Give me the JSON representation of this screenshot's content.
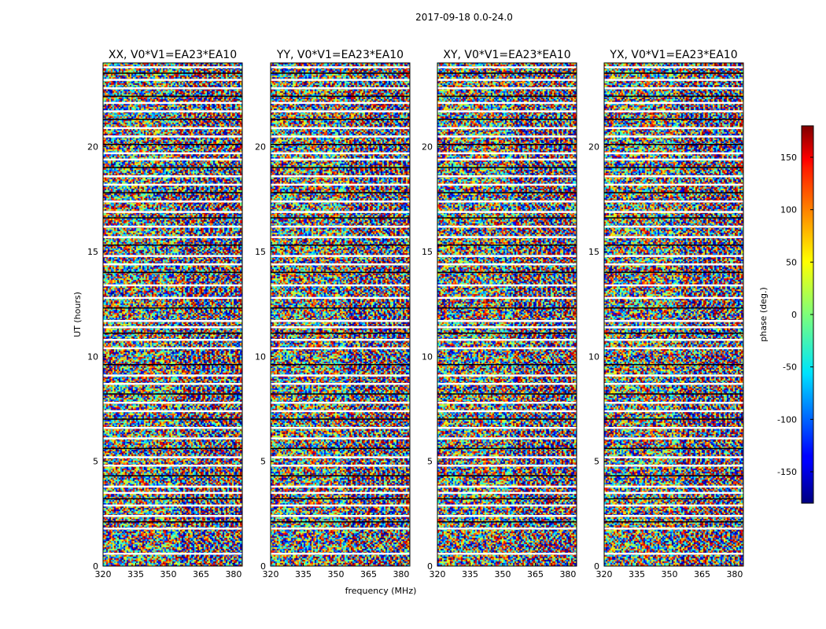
{
  "figure": {
    "suptitle": "2017-09-18 0.0-24.0",
    "xlabel": "frequency (MHz)",
    "ylabel": "UT (hours)"
  },
  "chart_data": {
    "type": "heatmap",
    "x_ticks": [
      320,
      335,
      350,
      365,
      380
    ],
    "y_ticks": [
      0,
      5,
      10,
      15,
      20
    ],
    "xlim": [
      320,
      384
    ],
    "ylim": [
      0,
      24
    ],
    "colormap": "jet",
    "panels": [
      {
        "title": "XX, V0*V1=EA23*EA10"
      },
      {
        "title": "YY, V0*V1=EA23*EA10"
      },
      {
        "title": "XY, V0*V1=EA23*EA10"
      },
      {
        "title": "YX, V0*V1=EA23*EA10"
      }
    ],
    "gap_rows_ut": [
      0.6,
      1.8,
      2.1,
      2.4,
      2.9,
      3.2,
      3.5,
      3.8,
      4.3,
      4.8,
      5.2,
      5.6,
      6.1,
      6.6,
      7.0,
      7.4,
      7.8,
      8.2,
      8.7,
      9.1,
      9.6,
      10.4,
      10.8,
      11.1,
      11.4,
      11.7,
      12.3,
      12.8,
      13.4,
      14.0,
      14.4,
      14.8,
      15.3,
      15.7,
      16.2,
      16.6,
      16.9,
      17.4,
      17.8,
      18.2,
      18.6,
      19.0,
      19.4,
      19.7,
      20.1,
      20.5,
      20.9,
      21.3,
      21.7,
      22.1,
      22.4,
      22.8,
      23.2,
      23.5,
      23.8
    ],
    "colorbar": {
      "label": "phase (deg.)",
      "ticks": [
        150,
        100,
        50,
        0,
        -50,
        -100,
        -150
      ],
      "range": [
        -180,
        180
      ]
    }
  }
}
